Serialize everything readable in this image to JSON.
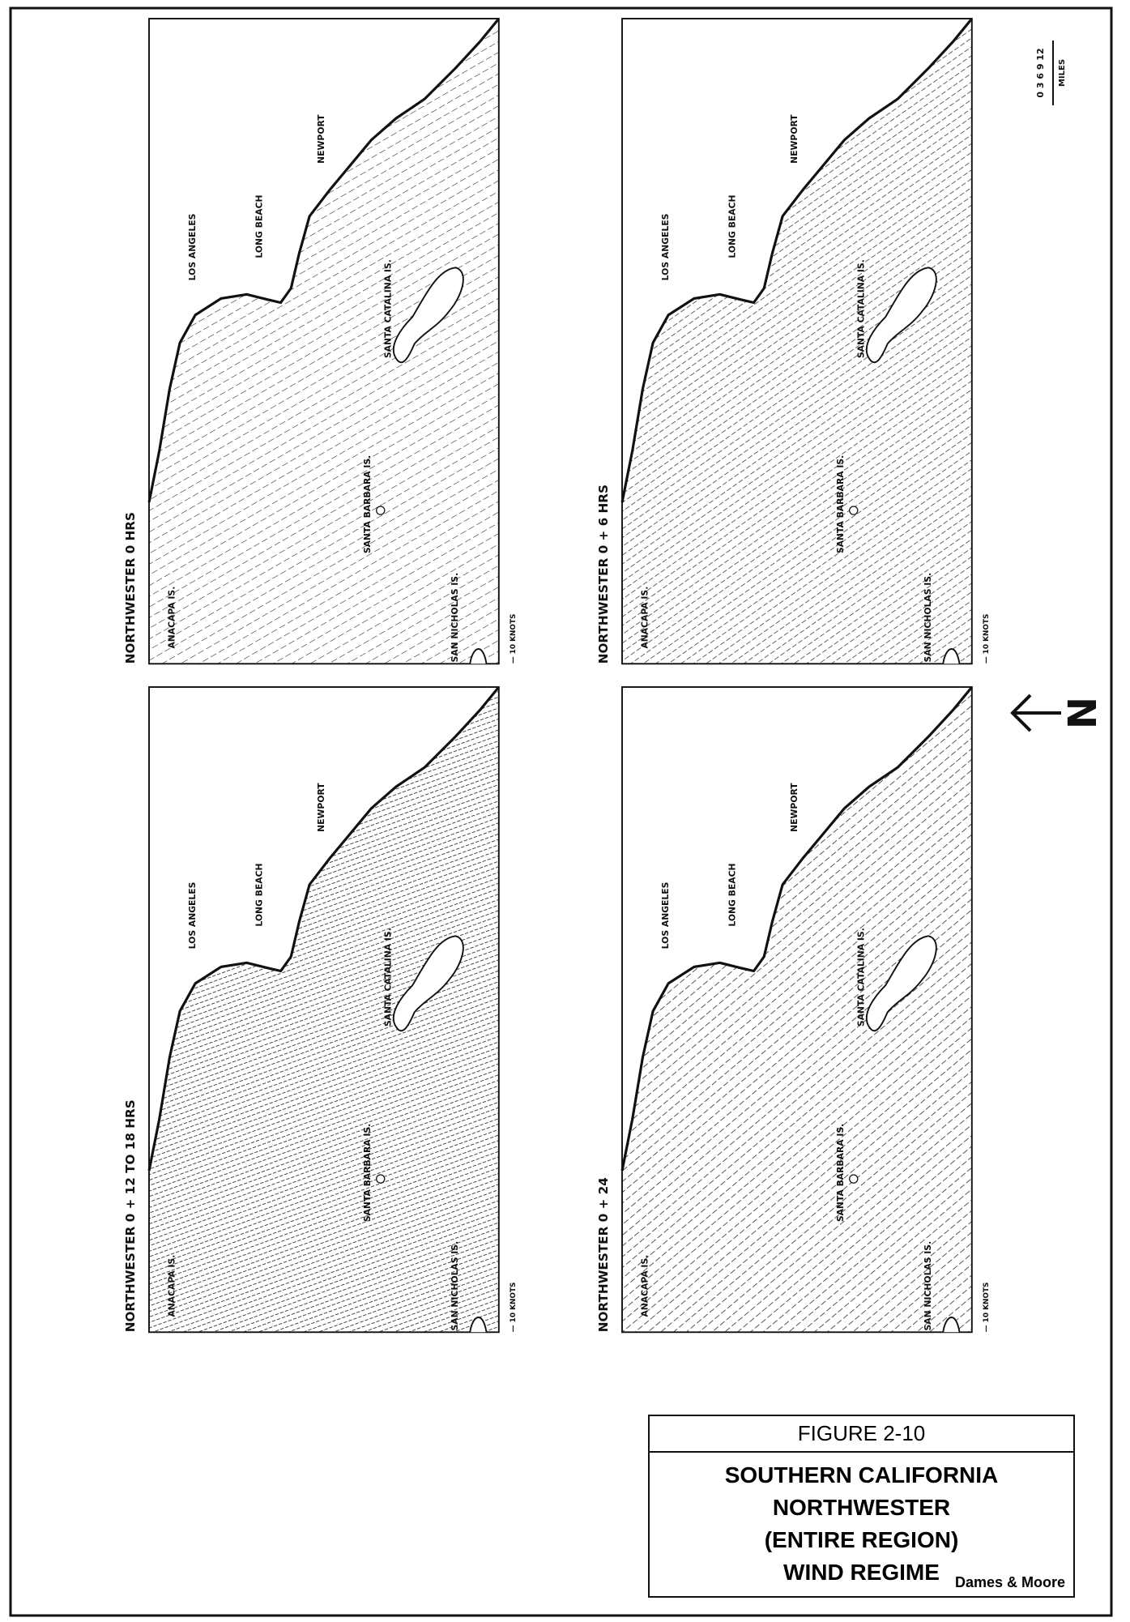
{
  "panels": [
    {
      "label": "NORTHWESTER 0 HRS",
      "scale": "— 10 KNOTS",
      "places": [
        "LOS ANGELES",
        "LONG BEACH",
        "NEWPORT",
        "SANTA CATALINA IS.",
        "SANTA BARBARA IS.",
        "SAN NICHOLAS IS.",
        "ANACAPA IS."
      ]
    },
    {
      "label": "NORTHWESTER 0 + 6 HRS",
      "scale": "— 10 KNOTS",
      "places": [
        "LOS ANGELES",
        "LONG BEACH",
        "NEWPORT",
        "SANTA CATALINA IS.",
        "SANTA BARBARA IS.",
        "SAN NICHOLAS IS.",
        "ANACAPA IS."
      ]
    },
    {
      "label": "NORTHWESTER 0 + 12 TO 18 HRS",
      "scale": "— 10 KNOTS",
      "places": [
        "LOS ANGELES",
        "LONG BEACH",
        "NEWPORT",
        "SANTA CATALINA IS.",
        "SANTA BARBARA IS.",
        "SAN NICHOLAS IS.",
        "ANACAPA IS."
      ]
    },
    {
      "label": "NORTHWESTER 0 + 24",
      "scale": "— 10 KNOTS",
      "places": [
        "LOS ANGELES",
        "LONG BEACH",
        "NEWPORT",
        "SANTA CATALINA IS.",
        "SANTA BARBARA IS.",
        "SAN NICHOLAS IS.",
        "ANACAPA IS."
      ]
    }
  ],
  "north_label": "N",
  "distance_scale": {
    "ticks": "0 3 6 9 12",
    "unit": "MILES"
  },
  "figure": {
    "number": "FIGURE 2-10",
    "title_lines": [
      "SOUTHERN CALIFORNIA",
      "NORTHWESTER",
      "(ENTIRE REGION)",
      "WIND REGIME"
    ],
    "credit": "Dames & Moore"
  }
}
